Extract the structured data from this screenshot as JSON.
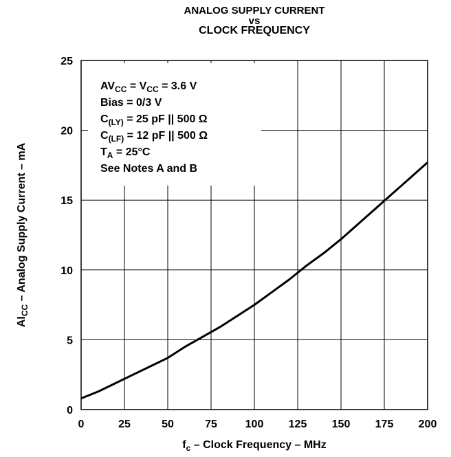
{
  "chart_data": {
    "type": "line",
    "title_lines": [
      "ANALOG SUPPLY CURRENT",
      "vs",
      "CLOCK FREQUENCY"
    ],
    "xlabel": {
      "main": "f",
      "sub": "c",
      "rest": " – Clock Frequency – MHz"
    },
    "ylabel": {
      "main": "AI",
      "sub": "CC",
      "rest": " – Analog Supply Current – mA"
    },
    "xlim": [
      0,
      200
    ],
    "ylim": [
      0,
      25
    ],
    "x_ticks": [
      "0",
      "25",
      "50",
      "75",
      "100",
      "125",
      "150",
      "175",
      "200"
    ],
    "y_ticks": [
      "0",
      "5",
      "10",
      "15",
      "20",
      "25"
    ],
    "grid": true,
    "series": [
      {
        "x": [
          0,
          10,
          20,
          30,
          40,
          50,
          60,
          70,
          80,
          90,
          100,
          110,
          120,
          130,
          140,
          150,
          160,
          170,
          180,
          190,
          200
        ],
        "y": [
          0.8,
          1.3,
          1.9,
          2.5,
          3.1,
          3.7,
          4.5,
          5.2,
          5.9,
          6.7,
          7.5,
          8.4,
          9.3,
          10.3,
          11.2,
          12.2,
          13.3,
          14.4,
          15.5,
          16.6,
          17.7
        ]
      }
    ],
    "annotations": [
      {
        "main": "AV",
        "sub": "CC",
        "rest": " = V",
        "sub2": "CC",
        "rest2": " = 3.6 V"
      },
      {
        "main": "Bias = 0/3 V",
        "sub": "",
        "rest": ""
      },
      {
        "main": "C",
        "sub": "(LY)",
        "rest": " = 25 pF || 500 Ω"
      },
      {
        "main": "C",
        "sub": "(LF)",
        "rest": " = 12 pF || 500 Ω"
      },
      {
        "main": "T",
        "sub": "A",
        "rest": " = 25°C"
      },
      {
        "main": "See Notes A and B",
        "sub": "",
        "rest": ""
      }
    ]
  }
}
